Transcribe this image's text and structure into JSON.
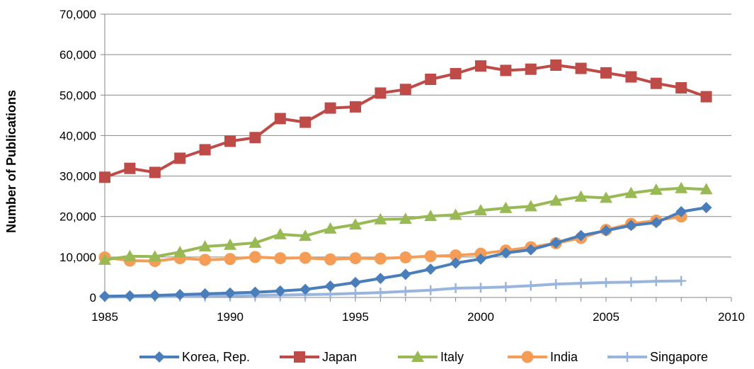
{
  "chart_data": {
    "type": "line",
    "ylabel": "Number of Publications",
    "xlabel": "",
    "xlim": [
      1985,
      2010
    ],
    "ylim": [
      0,
      70000
    ],
    "x_ticks": [
      1985,
      1990,
      1995,
      2000,
      2005,
      2010
    ],
    "x_tick_labels": [
      "1985",
      "1990",
      "1995",
      "2000",
      "2005",
      "2010"
    ],
    "y_ticks": [
      0,
      10000,
      20000,
      30000,
      40000,
      50000,
      60000,
      70000
    ],
    "y_tick_labels": [
      "0",
      "10,000",
      "20,000",
      "30,000",
      "40,000",
      "50,000",
      "60,000",
      "70,000"
    ],
    "grid": "horizontal",
    "legend_position": "bottom",
    "series": [
      {
        "name": "Korea, Rep.",
        "color": "#4a7ebb",
        "marker": "diamond",
        "x": [
          1985,
          1986,
          1987,
          1988,
          1989,
          1990,
          1991,
          1992,
          1993,
          1994,
          1995,
          1996,
          1997,
          1998,
          1999,
          2000,
          2001,
          2002,
          2003,
          2004,
          2005,
          2006,
          2007,
          2008,
          2009
        ],
        "y": [
          300,
          400,
          500,
          700,
          900,
          1100,
          1300,
          1600,
          2000,
          2800,
          3700,
          4700,
          5700,
          7000,
          8500,
          9500,
          11000,
          11800,
          13500,
          15300,
          16500,
          17800,
          18500,
          21200,
          22200
        ]
      },
      {
        "name": "Japan",
        "color": "#be4b48",
        "marker": "square",
        "x": [
          1985,
          1986,
          1987,
          1988,
          1989,
          1990,
          1991,
          1992,
          1993,
          1994,
          1995,
          1996,
          1997,
          1998,
          1999,
          2000,
          2001,
          2002,
          2003,
          2004,
          2005,
          2006,
          2007,
          2008,
          2009
        ],
        "y": [
          29700,
          31900,
          30900,
          34400,
          36500,
          38600,
          39500,
          44200,
          43300,
          46800,
          47100,
          50500,
          51400,
          53900,
          55300,
          57200,
          56100,
          56400,
          57400,
          56600,
          55500,
          54500,
          52900,
          51800,
          49600
        ]
      },
      {
        "name": "Italy",
        "color": "#98b954",
        "marker": "triangle",
        "x": [
          1985,
          1986,
          1987,
          1988,
          1989,
          1990,
          1991,
          1992,
          1993,
          1994,
          1995,
          1996,
          1997,
          1998,
          1999,
          2000,
          2001,
          2002,
          2003,
          2004,
          2005,
          2006,
          2007,
          2008,
          2009
        ],
        "y": [
          9300,
          10200,
          10100,
          11200,
          12600,
          13000,
          13500,
          15600,
          15200,
          17000,
          18000,
          19300,
          19400,
          20100,
          20400,
          21500,
          22100,
          22500,
          23900,
          24900,
          24600,
          25800,
          26600,
          27000,
          26700
        ]
      },
      {
        "name": "India",
        "color": "#f59d56",
        "marker": "circle",
        "x": [
          1985,
          1986,
          1987,
          1988,
          1989,
          1990,
          1991,
          1992,
          1993,
          1994,
          1995,
          1996,
          1997,
          1998,
          1999,
          2000,
          2001,
          2002,
          2003,
          2004,
          2005,
          2006,
          2007,
          2008
        ],
        "y": [
          9900,
          9100,
          9000,
          9700,
          9300,
          9500,
          10000,
          9700,
          9800,
          9400,
          9700,
          9600,
          9900,
          10200,
          10400,
          10800,
          11600,
          12400,
          13400,
          14700,
          16700,
          18200,
          19000,
          20000
        ]
      },
      {
        "name": "Singapore",
        "color": "#99b4dd",
        "marker": "plus",
        "x": [
          1985,
          1986,
          1987,
          1988,
          1989,
          1990,
          1991,
          1992,
          1993,
          1994,
          1995,
          1996,
          1997,
          1998,
          1999,
          2000,
          2001,
          2002,
          2003,
          2004,
          2005,
          2006,
          2007,
          2008
        ],
        "y": [
          100,
          150,
          200,
          300,
          350,
          400,
          500,
          600,
          700,
          800,
          1000,
          1200,
          1500,
          1800,
          2300,
          2400,
          2600,
          2900,
          3300,
          3500,
          3700,
          3800,
          4000,
          4100
        ]
      }
    ]
  }
}
